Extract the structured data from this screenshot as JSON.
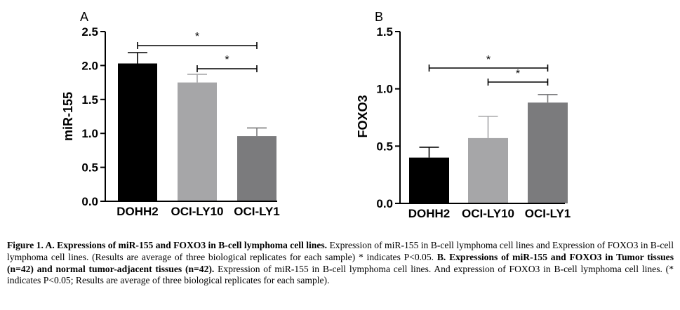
{
  "chart_data": [
    {
      "panel_label": "A",
      "type": "bar",
      "categories": [
        "DOHH2",
        "OCI-LY10",
        "OCI-LY1"
      ],
      "values": [
        2.03,
        1.75,
        0.96
      ],
      "errors": [
        0.16,
        0.12,
        0.12
      ],
      "colors": [
        "#000000",
        "#a6a6a8",
        "#7b7b7d"
      ],
      "ylabel": "miR-155",
      "ylim": [
        0,
        2.5
      ],
      "yticks": [
        "0.0",
        "0.5",
        "1.0",
        "1.5",
        "2.0",
        "2.5"
      ],
      "significance": [
        {
          "from": "DOHH2",
          "to": "OCI-LY1",
          "label": "*"
        },
        {
          "from": "OCI-LY10",
          "to": "OCI-LY1",
          "label": "*"
        }
      ]
    },
    {
      "panel_label": "B",
      "type": "bar",
      "categories": [
        "DOHH2",
        "OCI-LY10",
        "OCI-LY1"
      ],
      "values": [
        0.4,
        0.57,
        0.88
      ],
      "errors": [
        0.09,
        0.19,
        0.07
      ],
      "colors": [
        "#000000",
        "#a6a6a8",
        "#7b7b7d"
      ],
      "ylabel": "FOXO3",
      "ylim": [
        0,
        1.5
      ],
      "yticks": [
        "0.0",
        "0.5",
        "1.0",
        "1.5"
      ],
      "significance": [
        {
          "from": "DOHH2",
          "to": "OCI-LY1",
          "label": "*"
        },
        {
          "from": "OCI-LY10",
          "to": "OCI-LY1",
          "label": "*"
        }
      ]
    }
  ],
  "caption": {
    "title_a": "Figure 1. A. Expressions of miR-155 and FOXO3 in B-cell lymphoma cell lines.",
    "text_a": " Expression of miR-155 in B-cell lymphoma cell lines and Expression of FOXO3 in B-cell lymphoma cell lines. (Results are average of three biological replicates for each sample) * indicates P<0.05. ",
    "title_b": "B. Expressions of miR-155 and FOXO3 in Tumor tissues (n=42) and normal tumor-adjacent tissues (n=42).",
    "text_b": " Expression of miR-155 in B-cell lymphoma cell lines. And expression of FOXO3 in B-cell lymphoma cell lines. (* indicates P<0.05; Results are average of three biological replicates for each sample)."
  }
}
